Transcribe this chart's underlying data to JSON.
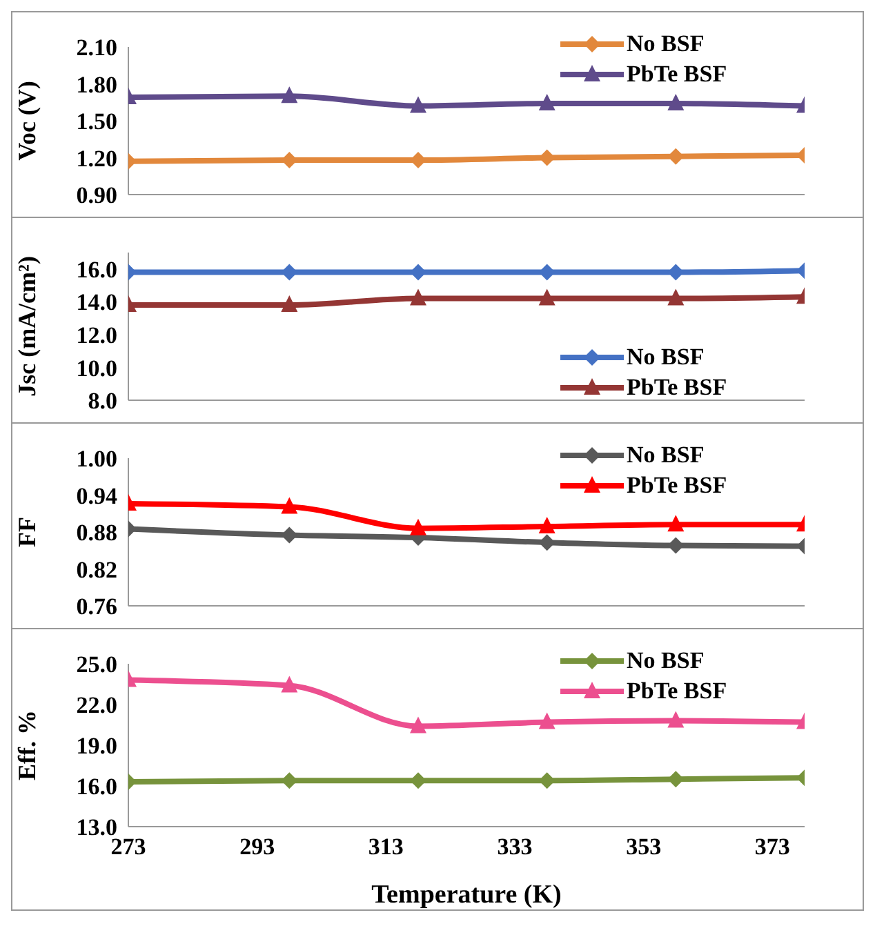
{
  "chart_data": [
    {
      "type": "line",
      "ylabel": "Voc (V)",
      "x": [
        273,
        298,
        318,
        338,
        358,
        378
      ],
      "xlim": [
        273,
        378
      ],
      "xticks": [
        273,
        293,
        313,
        333,
        353,
        373
      ],
      "ylim": [
        0.9,
        2.1
      ],
      "yticks": [
        {
          "value": 0.9,
          "label": "0.90"
        },
        {
          "value": 1.2,
          "label": "1.20"
        },
        {
          "value": 1.5,
          "label": "1.50"
        },
        {
          "value": 1.8,
          "label": "1.80"
        },
        {
          "value": 2.1,
          "label": "2.10"
        }
      ],
      "tick_labels": "y",
      "grid": false,
      "legend": "top right",
      "series": [
        {
          "name": "No BSF",
          "color": "#e2883c",
          "marker": "diamond",
          "values": [
            1.17,
            1.18,
            1.18,
            1.2,
            1.21,
            1.22
          ]
        },
        {
          "name": "PbTe BSF",
          "color": "#5f4b8b",
          "marker": "triangle",
          "values": [
            1.69,
            1.7,
            1.62,
            1.64,
            1.64,
            1.62
          ]
        }
      ]
    },
    {
      "type": "line",
      "ylabel": "Jsc (mA/cm²)",
      "x": [
        273,
        298,
        318,
        338,
        358,
        378
      ],
      "xlim": [
        273,
        378
      ],
      "xticks": [
        273,
        293,
        313,
        333,
        353,
        373
      ],
      "ylim": [
        8,
        17
      ],
      "yticks": [
        {
          "value": 8,
          "label": "8.0"
        },
        {
          "value": 10,
          "label": "10.0"
        },
        {
          "value": 12,
          "label": "12.0"
        },
        {
          "value": 14,
          "label": "14.0"
        },
        {
          "value": 16,
          "label": "16.0"
        }
      ],
      "tick_labels": "y",
      "grid": false,
      "legend": "bottom right",
      "series": [
        {
          "name": "No BSF",
          "color": "#4471c4",
          "marker": "diamond",
          "values": [
            15.8,
            15.8,
            15.8,
            15.8,
            15.8,
            15.9
          ]
        },
        {
          "name": "PbTe BSF",
          "color": "#943634",
          "marker": "triangle",
          "values": [
            13.8,
            13.8,
            14.2,
            14.2,
            14.2,
            14.3
          ]
        }
      ]
    },
    {
      "type": "line",
      "ylabel": "FF",
      "x": [
        273,
        298,
        318,
        338,
        358,
        378
      ],
      "xlim": [
        273,
        378
      ],
      "xticks": [
        273,
        293,
        313,
        333,
        353,
        373
      ],
      "ylim": [
        0.76,
        1.0
      ],
      "yticks": [
        0.76,
        0.82,
        0.88,
        0.94,
        {
          "value": 1.0,
          "label": "1.00"
        }
      ],
      "tick_labels": "y",
      "grid": false,
      "legend": "top right",
      "series": [
        {
          "name": "No BSF",
          "color": "#595959",
          "marker": "diamond",
          "values": [
            0.885,
            0.875,
            0.871,
            0.863,
            0.858,
            0.857
          ]
        },
        {
          "name": "PbTe BSF",
          "color": "#ff0000",
          "marker": "triangle",
          "values": [
            0.926,
            0.921,
            0.886,
            0.889,
            0.892,
            0.892
          ]
        }
      ]
    },
    {
      "type": "line",
      "ylabel": "Eff. %",
      "xlabel": "Temperature (K)",
      "x": [
        273,
        298,
        318,
        338,
        358,
        378
      ],
      "xlim": [
        273,
        378
      ],
      "xticks": [
        273,
        293,
        313,
        333,
        353,
        373
      ],
      "ylim": [
        13,
        25
      ],
      "yticks": [
        {
          "value": 13,
          "label": "13.0"
        },
        {
          "value": 16,
          "label": "16.0"
        },
        {
          "value": 19,
          "label": "19.0"
        },
        {
          "value": 22,
          "label": "22.0"
        },
        {
          "value": 25,
          "label": "25.0"
        }
      ],
      "grid": false,
      "legend": "top right",
      "series": [
        {
          "name": "No BSF",
          "color": "#77933c",
          "marker": "diamond",
          "values": [
            16.3,
            16.4,
            16.4,
            16.4,
            16.5,
            16.6
          ]
        },
        {
          "name": "PbTe BSF",
          "color": "#ec4f8f",
          "marker": "triangle",
          "values": [
            23.8,
            23.4,
            20.4,
            20.7,
            20.8,
            20.7
          ]
        }
      ]
    }
  ]
}
